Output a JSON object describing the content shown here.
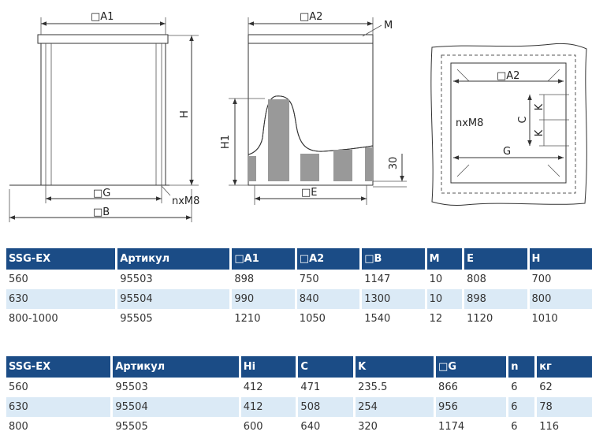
{
  "drawing": {
    "front": {
      "a1": "□A1",
      "h": "H",
      "g": "□G",
      "bolt": "nxM8",
      "b": "□B"
    },
    "side": {
      "a2": "□A2",
      "m": "M",
      "h1": "H1",
      "base": "30",
      "e": "□E"
    },
    "top": {
      "a2": "□A2",
      "k1": "K",
      "k2": "K",
      "c": "C",
      "bolt": "nxM8",
      "g": "G"
    }
  },
  "tables": [
    {
      "header": [
        "SSG-EX",
        "Артикул",
        "□A1",
        "□A2",
        "□B",
        "M",
        "E",
        "H"
      ],
      "rows": [
        [
          "560",
          "95503",
          "898",
          "750",
          "1147",
          "10",
          "808",
          "700"
        ],
        [
          "630",
          "95504",
          "990",
          "840",
          "1300",
          "10",
          "898",
          "800"
        ],
        [
          "800-1000",
          "95505",
          "1210",
          "1050",
          "1540",
          "12",
          "1120",
          "1010"
        ]
      ]
    },
    {
      "header": [
        "SSG-EX",
        "Артикул",
        "Hi",
        "C",
        "K",
        "□G",
        "n",
        "кг"
      ],
      "rows": [
        [
          "560",
          "95503",
          "412",
          "471",
          "235.5",
          "866",
          "6",
          "62"
        ],
        [
          "630",
          "95504",
          "412",
          "508",
          "254",
          "956",
          "6",
          "78"
        ],
        [
          "800",
          "95505",
          "600",
          "640",
          "320",
          "1174",
          "6",
          "116"
        ]
      ]
    }
  ]
}
